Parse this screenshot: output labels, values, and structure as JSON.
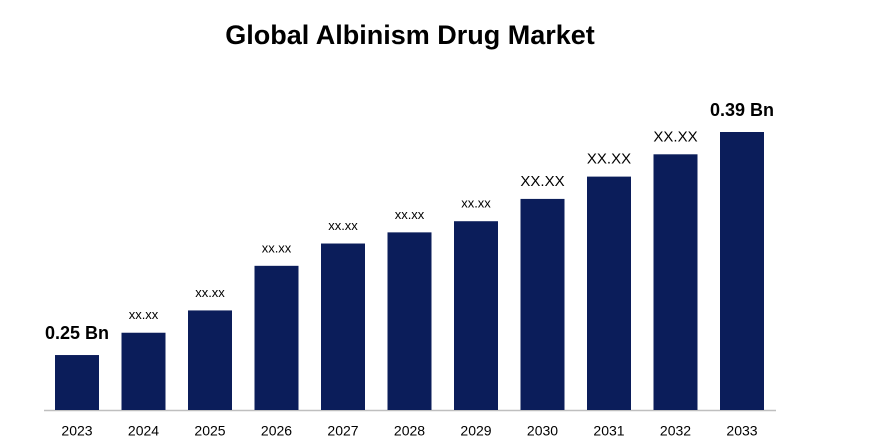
{
  "chart_data": {
    "type": "bar",
    "title": "Global Albinism Drug Market",
    "categories": [
      "2023",
      "2024",
      "2025",
      "2026",
      "2027",
      "2028",
      "2029",
      "2030",
      "2031",
      "2032",
      "2033"
    ],
    "values": [
      0.25,
      0.264,
      0.278,
      0.306,
      0.32,
      0.327,
      0.334,
      0.348,
      0.362,
      0.376,
      0.39
    ],
    "value_labels": [
      "0.25 Bn",
      "xx.xx",
      "xx.xx",
      "xx.xx",
      "xx.xx",
      "xx.xx",
      "xx.xx",
      "XX.XX",
      "XX.XX",
      "XX.XX",
      "0.39 Bn"
    ],
    "color": "#0b1d5a",
    "ylim": [
      0.2155,
      0.39
    ]
  }
}
